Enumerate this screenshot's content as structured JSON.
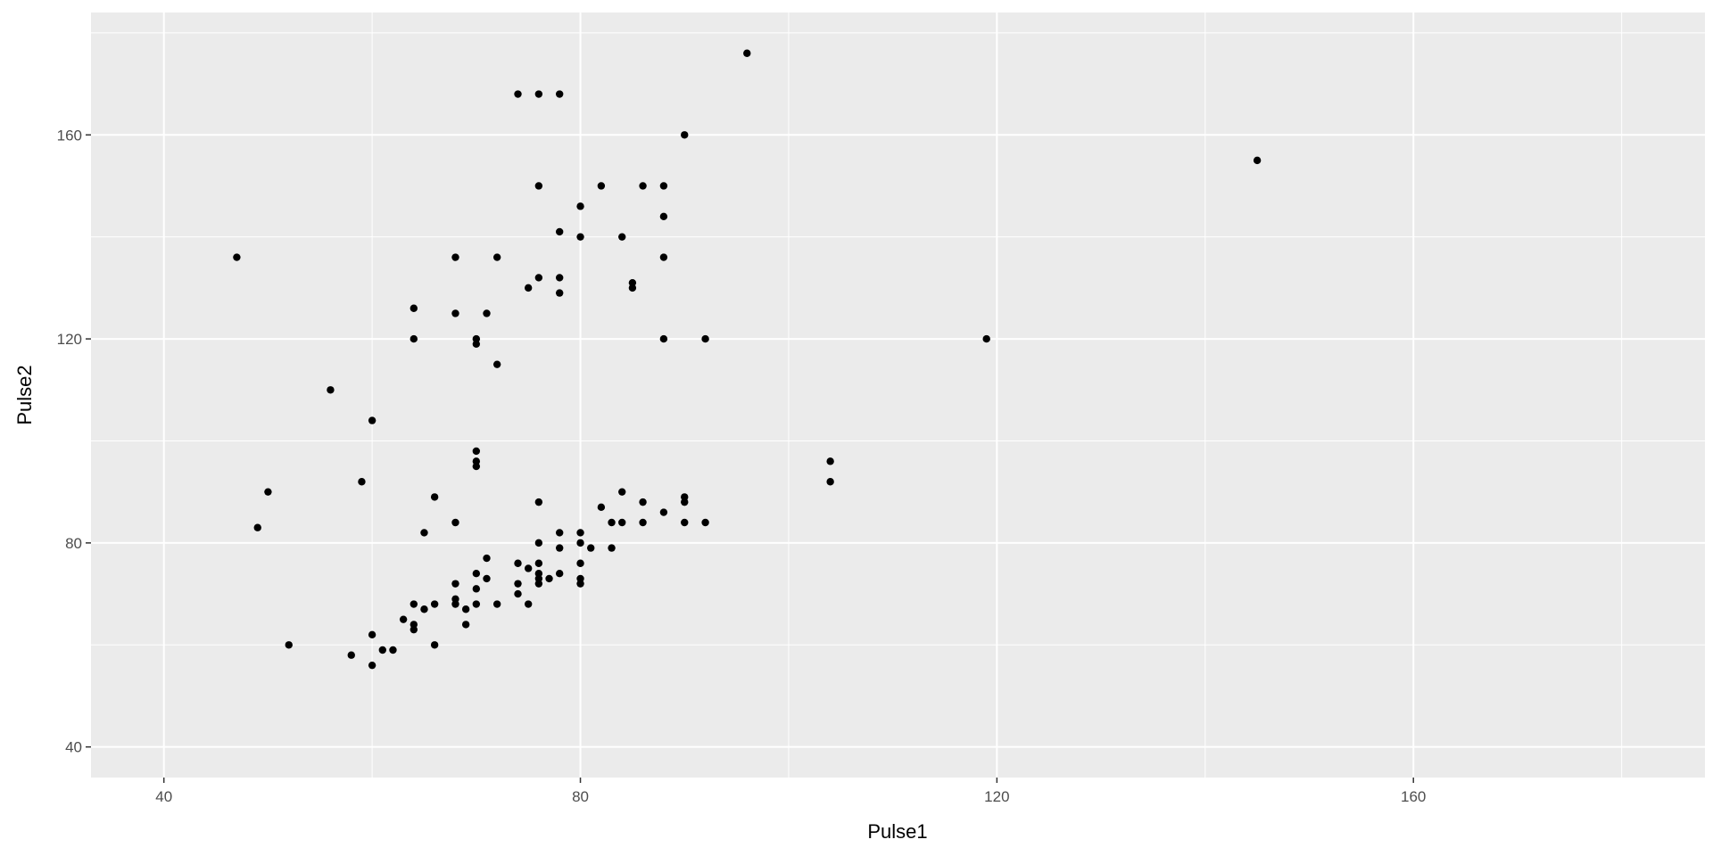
{
  "chart_data": {
    "type": "scatter",
    "xlabel": "Pulse1",
    "ylabel": "Pulse2",
    "xlim": [
      33,
      188
    ],
    "ylim": [
      34,
      184
    ],
    "x_ticks": [
      40,
      80,
      120,
      160
    ],
    "y_ticks": [
      40,
      80,
      120,
      160
    ],
    "x_tick_labels": [
      "40",
      "80",
      "120",
      "160"
    ],
    "y_tick_labels": [
      "40",
      "80",
      "120",
      "160"
    ],
    "grid": true,
    "panel_color": "#ebebeb",
    "grid_color": "#ffffff",
    "point_color": "#000000",
    "points": [
      [
        47,
        136
      ],
      [
        49,
        83
      ],
      [
        50,
        90
      ],
      [
        52,
        60
      ],
      [
        56,
        110
      ],
      [
        58,
        58
      ],
      [
        59,
        92
      ],
      [
        60,
        104
      ],
      [
        60,
        62
      ],
      [
        60,
        56
      ],
      [
        61,
        59
      ],
      [
        62,
        59
      ],
      [
        63,
        65
      ],
      [
        64,
        126
      ],
      [
        64,
        120
      ],
      [
        64,
        68
      ],
      [
        64,
        64
      ],
      [
        64,
        63
      ],
      [
        65,
        82
      ],
      [
        65,
        67
      ],
      [
        66,
        89
      ],
      [
        66,
        68
      ],
      [
        66,
        60
      ],
      [
        68,
        136
      ],
      [
        68,
        125
      ],
      [
        68,
        84
      ],
      [
        68,
        72
      ],
      [
        68,
        69
      ],
      [
        68,
        68
      ],
      [
        69,
        67
      ],
      [
        69,
        64
      ],
      [
        70,
        120
      ],
      [
        70,
        119
      ],
      [
        70,
        98
      ],
      [
        70,
        96
      ],
      [
        70,
        95
      ],
      [
        70,
        74
      ],
      [
        70,
        71
      ],
      [
        70,
        68
      ],
      [
        71,
        125
      ],
      [
        71,
        77
      ],
      [
        71,
        73
      ],
      [
        72,
        136
      ],
      [
        72,
        115
      ],
      [
        72,
        68
      ],
      [
        74,
        168
      ],
      [
        74,
        76
      ],
      [
        74,
        72
      ],
      [
        74,
        70
      ],
      [
        75,
        130
      ],
      [
        75,
        75
      ],
      [
        75,
        68
      ],
      [
        76,
        168
      ],
      [
        76,
        150
      ],
      [
        76,
        132
      ],
      [
        76,
        88
      ],
      [
        76,
        80
      ],
      [
        76,
        76
      ],
      [
        76,
        74
      ],
      [
        76,
        73
      ],
      [
        76,
        72
      ],
      [
        77,
        73
      ],
      [
        78,
        168
      ],
      [
        78,
        141
      ],
      [
        78,
        132
      ],
      [
        78,
        129
      ],
      [
        78,
        82
      ],
      [
        78,
        79
      ],
      [
        78,
        74
      ],
      [
        80,
        146
      ],
      [
        80,
        140
      ],
      [
        80,
        82
      ],
      [
        80,
        80
      ],
      [
        80,
        76
      ],
      [
        80,
        73
      ],
      [
        80,
        72
      ],
      [
        81,
        79
      ],
      [
        82,
        150
      ],
      [
        82,
        87
      ],
      [
        83,
        84
      ],
      [
        83,
        79
      ],
      [
        84,
        140
      ],
      [
        84,
        90
      ],
      [
        84,
        84
      ],
      [
        85,
        131
      ],
      [
        85,
        130
      ],
      [
        86,
        150
      ],
      [
        86,
        88
      ],
      [
        86,
        84
      ],
      [
        88,
        150
      ],
      [
        88,
        144
      ],
      [
        88,
        136
      ],
      [
        88,
        120
      ],
      [
        88,
        86
      ],
      [
        90,
        160
      ],
      [
        90,
        89
      ],
      [
        90,
        88
      ],
      [
        90,
        84
      ],
      [
        92,
        120
      ],
      [
        92,
        84
      ],
      [
        96,
        176
      ],
      [
        104,
        96
      ],
      [
        104,
        92
      ],
      [
        119,
        120
      ],
      [
        145,
        155
      ]
    ]
  }
}
